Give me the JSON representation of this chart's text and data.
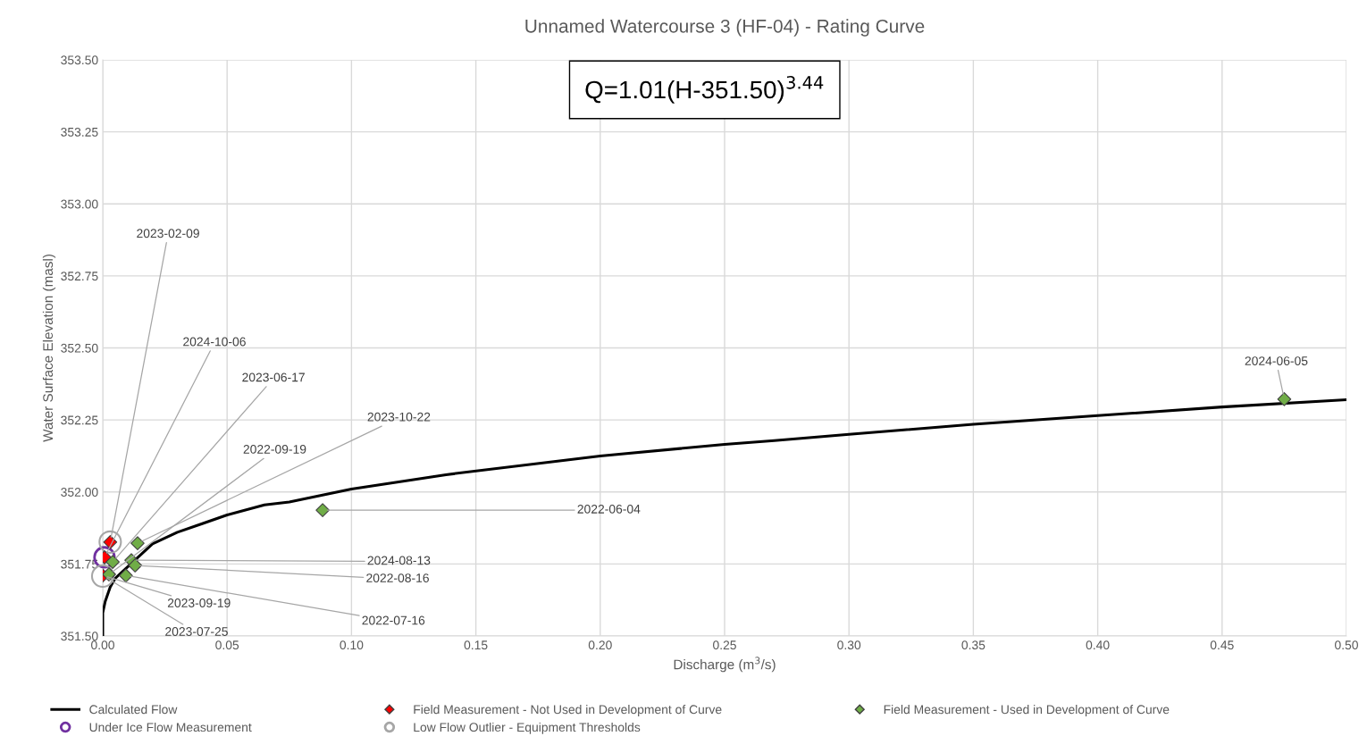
{
  "chart_data": {
    "type": "scatter",
    "title": "Unnamed Watercourse 3 (HF-04) - Rating Curve",
    "xlabel": "Discharge (m$^{3}$/s)",
    "ylabel": "Water Surface Elevation (masl)",
    "xlim": [
      0,
      0.5
    ],
    "ylim": [
      351.5,
      353.5
    ],
    "xticks": [
      {
        "value": 0,
        "label": "0.00"
      },
      {
        "value": 0.05,
        "label": "0.05"
      },
      {
        "value": 0.1,
        "label": "0.10"
      },
      {
        "value": 0.15,
        "label": "0.15"
      },
      {
        "value": 0.2,
        "label": "0.20"
      },
      {
        "value": 0.25,
        "label": "0.25"
      },
      {
        "value": 0.3,
        "label": "0.30"
      },
      {
        "value": 0.35,
        "label": "0.35"
      },
      {
        "value": 0.4,
        "label": "0.40"
      },
      {
        "value": 0.45,
        "label": "0.45"
      },
      {
        "value": 0.5,
        "label": "0.50"
      }
    ],
    "yticks": [
      {
        "value": 351.5,
        "label": "351.50"
      },
      {
        "value": 351.75,
        "label": "351.75"
      },
      {
        "value": 352.0,
        "label": "352.00"
      },
      {
        "value": 352.25,
        "label": "352.25"
      },
      {
        "value": 352.5,
        "label": "352.50"
      },
      {
        "value": 352.75,
        "label": "352.75"
      },
      {
        "value": 353.0,
        "label": "353.00"
      },
      {
        "value": 353.25,
        "label": "353.25"
      },
      {
        "value": 353.5,
        "label": "353.50"
      }
    ],
    "grid": true,
    "legend": "bottom",
    "series": [
      {
        "name": "Calculated Flow",
        "type": "line",
        "color": "#000000",
        "marker": "none",
        "line_style": "solid",
        "x": [
          0,
          0,
          0.001,
          0.003,
          0.005,
          0.01,
          0.02,
          0.03,
          0.04,
          0.05,
          0.065,
          0.075,
          0.1,
          0.138,
          0.2,
          0.25,
          0.27,
          0.3,
          0.35,
          0.4,
          0.45,
          0.5
        ],
        "values": [
          351.5,
          351.58,
          351.62,
          351.67,
          351.7,
          351.74,
          351.82,
          351.86,
          351.89,
          351.92,
          351.955,
          351.965,
          352.01,
          352.06,
          352.125,
          352.165,
          352.178,
          352.2,
          352.235,
          352.265,
          352.295,
          352.32
        ]
      },
      {
        "name": "Field Measurement - Not Used in Development of Curve",
        "type": "scatter",
        "color": "#ff0000",
        "marker": "diamond",
        "x": [
          0.003,
          0.0007,
          0.0
        ],
        "values": [
          351.826,
          351.773,
          351.71
        ]
      },
      {
        "name": "Field Measurement - Used in Development of Curve",
        "type": "scatter",
        "color": "#70ad47",
        "marker": "diamond",
        "x": [
          0.014,
          0.004,
          0.0115,
          0.013,
          0.0093,
          0.0025,
          0.0884,
          0.475
        ],
        "values": [
          351.822,
          351.757,
          351.763,
          351.745,
          351.71,
          351.714,
          351.937,
          352.322
        ]
      },
      {
        "name": "Under Ice Flow Measurement",
        "type": "scatter",
        "color": "#7030a0",
        "marker": "circle",
        "x": [
          0.0007
        ],
        "values": [
          351.773
        ]
      },
      {
        "name": "Low Flow Outlier - Equipment Thresholds",
        "type": "scatter",
        "color": "#a6a6a6",
        "marker": "circle",
        "x": [
          0.003,
          0.0
        ],
        "values": [
          351.826,
          351.708
        ]
      }
    ],
    "annotations": [
      "Q=1.01(H-351.50)$^{3.44}$",
      {
        "text": "2023-02-09",
        "x": 0.003,
        "y": 351.826
      },
      {
        "text": "2024-10-06",
        "x": 0.0007,
        "y": 351.773
      },
      {
        "text": "2023-06-17",
        "x": 0.004,
        "y": 351.757
      },
      {
        "text": "2022-09-19",
        "x": 0.0025,
        "y": 351.714
      },
      {
        "text": "2023-10-22",
        "x": 0.014,
        "y": 351.822
      },
      {
        "text": "2024-08-13",
        "x": 0.0115,
        "y": 351.763
      },
      {
        "text": "2022-08-16",
        "x": 0.013,
        "y": 351.745
      },
      {
        "text": "2022-07-16",
        "x": 0.0093,
        "y": 351.71
      },
      {
        "text": "2023-09-19",
        "x": 0.0,
        "y": 351.71
      },
      {
        "text": "2023-07-25",
        "x": 0.0,
        "y": 351.71
      },
      {
        "text": "2022-06-04",
        "x": 0.0884,
        "y": 351.937
      },
      {
        "text": "2024-06-05",
        "x": 0.475,
        "y": 352.322
      }
    ]
  }
}
